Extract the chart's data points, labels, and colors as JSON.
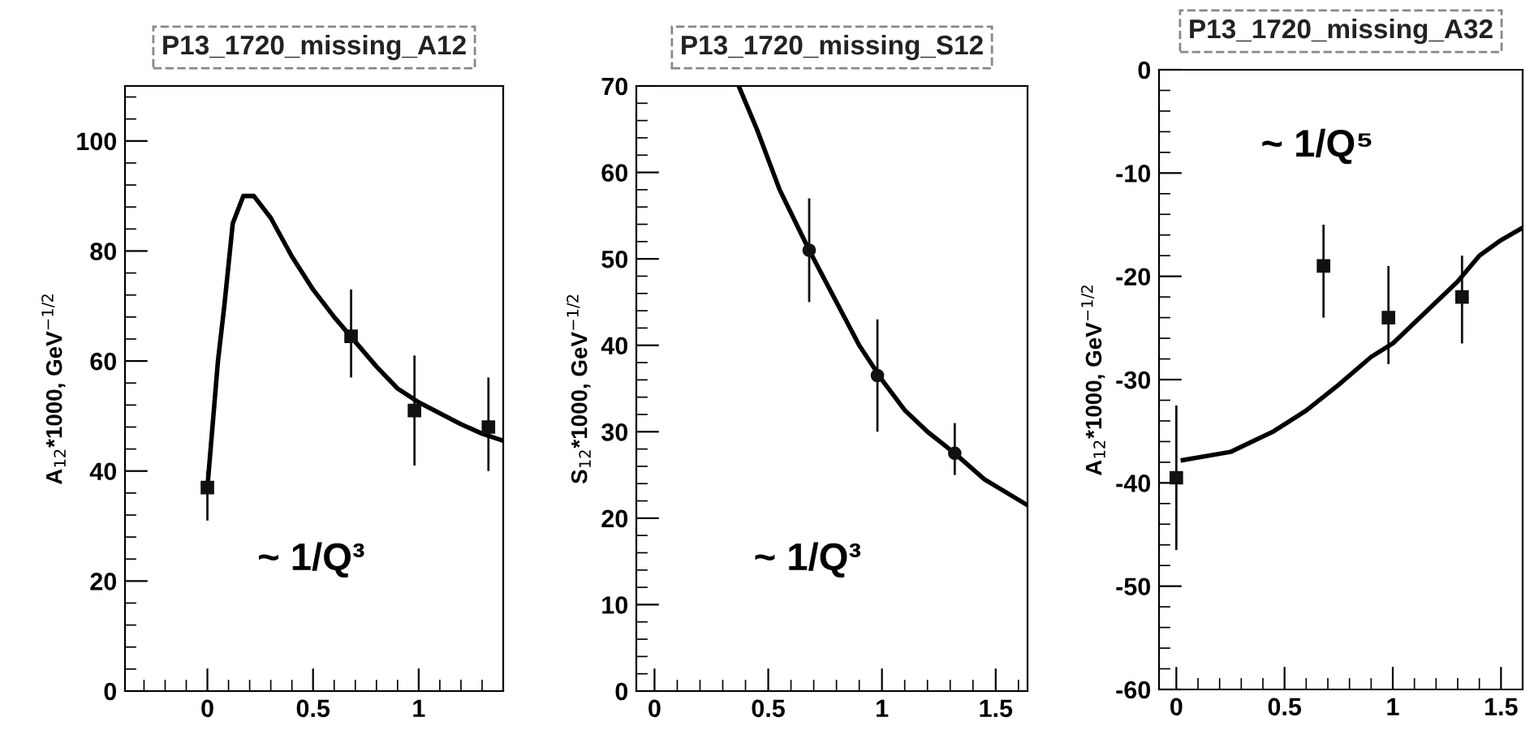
{
  "chart_data": [
    {
      "type": "scatter",
      "title": "P13_1720_missing_A12",
      "ylabel": "A$_{12}$*1000, GeV$^{−1/2}$",
      "annotations": [
        "~ 1/Q³"
      ],
      "xlim": [
        -0.39,
        1.4
      ],
      "ylim": [
        0,
        110
      ],
      "xticks": [
        0,
        0.5,
        1
      ],
      "yticks": [
        0,
        20,
        40,
        60,
        80,
        100
      ],
      "grid": false,
      "legend": false,
      "marker": "square",
      "series": [
        {
          "color": "#111111",
          "x": [
            0,
            0.68,
            0.98,
            1.33
          ],
          "values": [
            37,
            64.5,
            51,
            48
          ],
          "errors": [
            [
              31,
              40
            ],
            [
              57,
              73
            ],
            [
              41,
              61
            ],
            [
              40,
              57
            ]
          ]
        },
        {
          "type": "line",
          "color": "#000000",
          "marker": "none",
          "x": [
            0,
            0.05,
            0.08,
            0.12,
            0.17,
            0.22,
            0.3,
            0.4,
            0.5,
            0.6,
            0.7,
            0.8,
            0.9,
            1.0,
            1.1,
            1.2,
            1.3,
            1.4
          ],
          "values": [
            37,
            60,
            70,
            85,
            90,
            90,
            86,
            79,
            73,
            68,
            63.5,
            59,
            55,
            52.5,
            50.5,
            48.5,
            46.8,
            45.5
          ]
        }
      ]
    },
    {
      "type": "scatter",
      "title": "P13_1720_missing_S12",
      "ylabel": "S$_{12}$*1000, GeV$^{−1/2}$",
      "annotations": [
        "~ 1/Q³"
      ],
      "xlim": [
        -0.08,
        1.64
      ],
      "ylim": [
        0,
        70
      ],
      "xticks": [
        0,
        0.5,
        1,
        1.5
      ],
      "yticks": [
        0,
        10,
        20,
        30,
        40,
        50,
        60,
        70
      ],
      "grid": false,
      "legend": false,
      "marker": "circle",
      "series": [
        {
          "color": "#111111",
          "x": [
            0.68,
            0.98,
            1.32
          ],
          "values": [
            51,
            36.5,
            27.5
          ],
          "errors": [
            [
              45,
              57
            ],
            [
              30,
              43
            ],
            [
              25,
              31
            ]
          ]
        },
        {
          "type": "line",
          "color": "#000000",
          "marker": "none",
          "x": [
            0.37,
            0.45,
            0.55,
            0.68,
            0.8,
            0.9,
            1.0,
            1.1,
            1.2,
            1.32,
            1.45,
            1.64
          ],
          "values": [
            70,
            65,
            58,
            51,
            45,
            40,
            36,
            32.5,
            30,
            27.5,
            24.5,
            21.5
          ]
        }
      ]
    },
    {
      "type": "scatter",
      "title": "P13_1720_missing_A32",
      "ylabel": "A$_{12}$*1000, GeV$^{−1/2}$",
      "annotations": [
        "~ 1/Q⁵"
      ],
      "xlim": [
        -0.08,
        1.6
      ],
      "ylim": [
        -60,
        0
      ],
      "xticks": [
        0,
        0.5,
        1,
        1.5
      ],
      "yticks": [
        -60,
        -50,
        -40,
        -30,
        -20,
        -10,
        0
      ],
      "grid": false,
      "legend": false,
      "marker": "square",
      "series": [
        {
          "color": "#111111",
          "x": [
            0,
            0.68,
            0.98,
            1.32
          ],
          "values": [
            -39.5,
            -19,
            -24,
            -22
          ],
          "errors": [
            [
              -46.5,
              -32.5
            ],
            [
              -24,
              -15
            ],
            [
              -28.5,
              -19
            ],
            [
              -26.5,
              -18
            ]
          ]
        },
        {
          "type": "line",
          "color": "#000000",
          "marker": "none",
          "x": [
            0.03,
            0.25,
            0.45,
            0.6,
            0.75,
            0.9,
            1.0,
            1.1,
            1.2,
            1.3,
            1.4,
            1.5,
            1.6
          ],
          "values": [
            -37.8,
            -37,
            -35,
            -33,
            -30.5,
            -27.8,
            -26.5,
            -24.5,
            -22.5,
            -20.5,
            -18,
            -16.5,
            -15.3
          ]
        }
      ]
    }
  ]
}
